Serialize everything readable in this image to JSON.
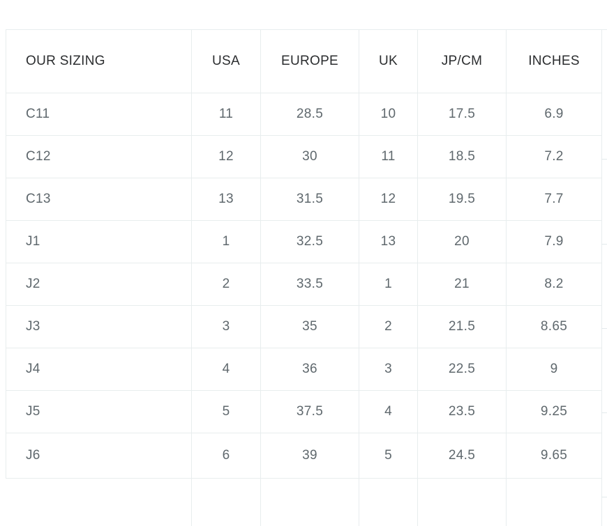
{
  "table": {
    "columns": [
      {
        "key": "our-sizing",
        "label": "OUR SIZING",
        "align": "left"
      },
      {
        "key": "usa",
        "label": "USA",
        "align": "center"
      },
      {
        "key": "europe",
        "label": "EUROPE",
        "align": "center"
      },
      {
        "key": "uk",
        "label": "UK",
        "align": "center"
      },
      {
        "key": "jp-cm",
        "label": "JP/CM",
        "align": "center"
      },
      {
        "key": "inches",
        "label": "INCHES",
        "align": "center"
      }
    ],
    "rows": [
      [
        "C11",
        "11",
        "28.5",
        "10",
        "17.5",
        "6.9"
      ],
      [
        "C12",
        "12",
        "30",
        "11",
        "18.5",
        "7.2"
      ],
      [
        "C13",
        "13",
        "31.5",
        "12",
        "19.5",
        "7.7"
      ],
      [
        "J1",
        "1",
        "32.5",
        "13",
        "20",
        "7.9"
      ],
      [
        "J2",
        "2",
        "33.5",
        "1",
        "21",
        "8.2"
      ],
      [
        "J3",
        "3",
        "35",
        "2",
        "21.5",
        "8.65"
      ],
      [
        "J4",
        "4",
        "36",
        "3",
        "22.5",
        "9"
      ],
      [
        "J5",
        "5",
        "37.5",
        "4",
        "23.5",
        "9.25"
      ],
      [
        "J6",
        "6",
        "39",
        "5",
        "24.5",
        "9.65"
      ]
    ],
    "has_trailing_empty_row": true
  },
  "adjacent_table_edge_tick_y": [
    228,
    350,
    471,
    592,
    713
  ],
  "colors": {
    "bg": "#ffffff",
    "border_color": "#e8edee",
    "header_text_color": "#2b2d2f",
    "cell_text_color": "#5f686d"
  }
}
